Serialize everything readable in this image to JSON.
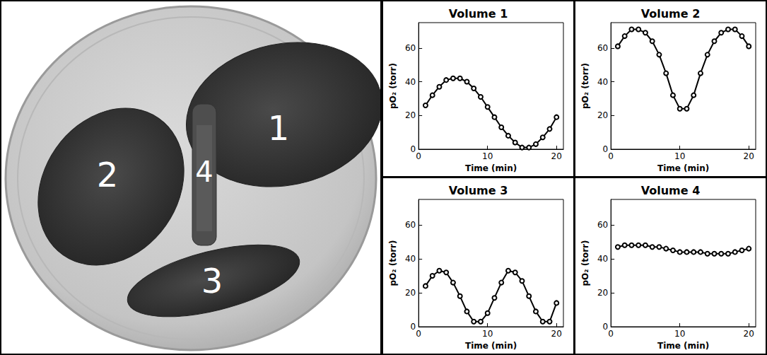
{
  "diagram": {
    "regions": [
      {
        "label": "1"
      },
      {
        "label": "2"
      },
      {
        "label": "3"
      },
      {
        "label": "4"
      }
    ]
  },
  "chart_data": [
    {
      "type": "line",
      "title": "Volume 1",
      "x_label": "Time (min)",
      "y_label": "pO₂ (torr)",
      "x": [
        1,
        2,
        3,
        4,
        5,
        6,
        7,
        8,
        9,
        10,
        11,
        12,
        13,
        14,
        15,
        16,
        17,
        18,
        19,
        20
      ],
      "values": [
        26,
        32,
        37,
        41,
        42,
        42,
        40,
        36,
        31,
        25,
        19,
        13,
        8,
        4,
        1,
        1,
        3,
        7,
        12,
        19
      ],
      "color": "#000000",
      "marker": "circle",
      "line_style": "solid",
      "xlim": [
        0,
        21
      ],
      "xticks": [
        0,
        10,
        20
      ],
      "ylim": [
        0,
        75
      ],
      "yticks": [
        0,
        20,
        40,
        60
      ],
      "grid": false
    },
    {
      "type": "line",
      "title": "Volume 2",
      "x_label": "Time (min)",
      "y_label": "pO₂ (torr)",
      "x": [
        1,
        2,
        3,
        4,
        5,
        6,
        7,
        8,
        9,
        10,
        11,
        12,
        13,
        14,
        15,
        16,
        17,
        18,
        19,
        20
      ],
      "values": [
        61,
        67,
        71,
        71,
        69,
        64,
        56,
        45,
        32,
        24,
        24,
        32,
        45,
        56,
        64,
        69,
        71,
        71,
        67,
        61
      ],
      "color": "#000000",
      "marker": "circle",
      "line_style": "solid",
      "xlim": [
        0,
        21
      ],
      "xticks": [
        0,
        10,
        20
      ],
      "ylim": [
        0,
        75
      ],
      "yticks": [
        0,
        20,
        40,
        60
      ],
      "grid": false
    },
    {
      "type": "line",
      "title": "Volume 3",
      "x_label": "Time (min)",
      "y_label": "pO₂ (torr)",
      "x": [
        1,
        2,
        3,
        4,
        5,
        6,
        7,
        8,
        9,
        10,
        11,
        12,
        13,
        14,
        15,
        16,
        17,
        18,
        19,
        20
      ],
      "values": [
        24,
        30,
        33,
        32,
        26,
        18,
        9,
        3,
        3,
        8,
        17,
        26,
        33,
        32,
        27,
        18,
        9,
        3,
        3,
        14
      ],
      "color": "#000000",
      "marker": "circle",
      "line_style": "solid",
      "xlim": [
        0,
        21
      ],
      "xticks": [
        0,
        10,
        20
      ],
      "ylim": [
        0,
        75
      ],
      "yticks": [
        0,
        20,
        40,
        60
      ],
      "grid": false
    },
    {
      "type": "line",
      "title": "Volume 4",
      "x_label": "Time (min)",
      "y_label": "pO₂ (torr)",
      "x": [
        1,
        2,
        3,
        4,
        5,
        6,
        7,
        8,
        9,
        10,
        11,
        12,
        13,
        14,
        15,
        16,
        17,
        18,
        19,
        20
      ],
      "values": [
        47,
        48,
        48,
        48,
        48,
        47,
        47,
        46,
        45,
        44,
        44,
        44,
        44,
        43,
        43,
        43,
        43,
        44,
        45,
        46
      ],
      "color": "#000000",
      "marker": "circle",
      "line_style": "solid",
      "xlim": [
        0,
        21
      ],
      "xticks": [
        0,
        10,
        20
      ],
      "ylim": [
        0,
        75
      ],
      "yticks": [
        0,
        20,
        40,
        60
      ],
      "grid": false
    }
  ]
}
